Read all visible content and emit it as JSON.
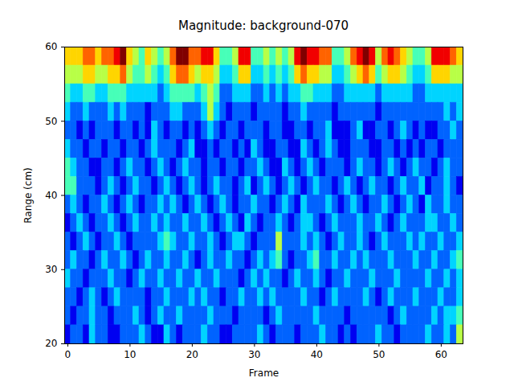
{
  "chart_data": {
    "type": "heatmap",
    "title": "Magnitude: background-070",
    "x_label": "Frame",
    "y_label": "Range (cm)",
    "xlim": [
      -0.5,
      63.5
    ],
    "ylim": [
      20,
      60
    ],
    "xticks": [
      0,
      10,
      20,
      30,
      40,
      50,
      60
    ],
    "yticks": [
      20,
      30,
      40,
      50,
      60
    ],
    "zlim": [
      0,
      9
    ],
    "x": [
      0,
      1,
      2,
      3,
      4,
      5,
      6,
      7,
      8,
      9,
      10,
      11,
      12,
      13,
      14,
      15,
      16,
      17,
      18,
      19,
      20,
      21,
      22,
      23,
      24,
      25,
      26,
      27,
      28,
      29,
      30,
      31,
      32,
      33,
      34,
      35,
      36,
      37,
      38,
      39,
      40,
      41,
      42,
      43,
      44,
      45,
      46,
      47,
      48,
      49,
      50,
      51,
      52,
      53,
      54,
      55,
      56,
      57,
      58,
      59,
      60,
      61,
      62,
      63
    ],
    "y": [
      58.75,
      56.25,
      53.75,
      51.25,
      48.75,
      46.25,
      43.75,
      41.25,
      38.75,
      36.25,
      33.75,
      31.25,
      28.75,
      26.25,
      23.75,
      21.25
    ],
    "z": [
      [
        6,
        6,
        6,
        7,
        7,
        6,
        7,
        7,
        8,
        9,
        6,
        5,
        4,
        6,
        5,
        4,
        5,
        7,
        9,
        9,
        7,
        7,
        8,
        8,
        6,
        4,
        4,
        5,
        8,
        8,
        4,
        4,
        5,
        4,
        5,
        4,
        5,
        8,
        9,
        8,
        8,
        7,
        7,
        4,
        4,
        5,
        7,
        8,
        9,
        8,
        5,
        7,
        8,
        7,
        6,
        5,
        4,
        4,
        5,
        8,
        8,
        8,
        7,
        6
      ],
      [
        5,
        5,
        5,
        6,
        6,
        5,
        5,
        6,
        6,
        7,
        5,
        4,
        4,
        5,
        4,
        3,
        4,
        6,
        7,
        7,
        6,
        5,
        6,
        6,
        5,
        3,
        3,
        4,
        6,
        6,
        3,
        3,
        4,
        3,
        4,
        3,
        4,
        6,
        7,
        6,
        6,
        5,
        5,
        3,
        3,
        4,
        5,
        6,
        7,
        6,
        4,
        5,
        6,
        6,
        5,
        4,
        3,
        3,
        4,
        6,
        6,
        6,
        5,
        5
      ],
      [
        4,
        3,
        3,
        4,
        4,
        3,
        3,
        4,
        4,
        4,
        3,
        3,
        3,
        3,
        3,
        2,
        3,
        4,
        4,
        4,
        4,
        3,
        4,
        5,
        4,
        2,
        2,
        3,
        3,
        3,
        2,
        2,
        3,
        2,
        3,
        2,
        3,
        3,
        4,
        4,
        3,
        3,
        3,
        2,
        2,
        3,
        3,
        3,
        3,
        3,
        2,
        3,
        3,
        3,
        3,
        3,
        2,
        2,
        3,
        3,
        3,
        3,
        3,
        3
      ],
      [
        3,
        2,
        2,
        3,
        2,
        2,
        2,
        3,
        2,
        3,
        2,
        2,
        2,
        1,
        2,
        2,
        2,
        3,
        3,
        2,
        2,
        2,
        3,
        5,
        3,
        2,
        1,
        2,
        2,
        2,
        1,
        2,
        2,
        2,
        2,
        1,
        2,
        2,
        3,
        2,
        2,
        2,
        2,
        1,
        2,
        2,
        2,
        2,
        2,
        2,
        1,
        2,
        2,
        2,
        2,
        2,
        2,
        2,
        2,
        2,
        2,
        3,
        2,
        3
      ],
      [
        2,
        2,
        1,
        2,
        1,
        2,
        2,
        2,
        1,
        2,
        2,
        1,
        2,
        1,
        3,
        2,
        1,
        2,
        2,
        1,
        2,
        1,
        2,
        3,
        2,
        1,
        2,
        2,
        1,
        2,
        2,
        2,
        1,
        2,
        2,
        1,
        1,
        2,
        2,
        1,
        2,
        2,
        3,
        1,
        1,
        1,
        2,
        3,
        1,
        1,
        2,
        2,
        1,
        2,
        3,
        2,
        1,
        2,
        1,
        1,
        2,
        2,
        3,
        2
      ],
      [
        3,
        2,
        2,
        1,
        2,
        2,
        1,
        2,
        2,
        1,
        2,
        2,
        1,
        2,
        3,
        2,
        2,
        2,
        1,
        2,
        3,
        1,
        1,
        2,
        1,
        2,
        2,
        1,
        2,
        1,
        3,
        2,
        1,
        1,
        2,
        2,
        1,
        1,
        3,
        2,
        1,
        2,
        3,
        2,
        1,
        1,
        2,
        2,
        2,
        1,
        1,
        2,
        2,
        1,
        2,
        1,
        2,
        1,
        2,
        2,
        1,
        2,
        2,
        2
      ],
      [
        4,
        3,
        2,
        2,
        1,
        1,
        2,
        2,
        1,
        2,
        3,
        2,
        2,
        1,
        2,
        3,
        2,
        1,
        2,
        3,
        2,
        2,
        1,
        2,
        2,
        1,
        2,
        2,
        1,
        2,
        2,
        3,
        2,
        1,
        1,
        3,
        2,
        1,
        2,
        3,
        2,
        1,
        2,
        2,
        2,
        1,
        2,
        3,
        2,
        2,
        1,
        2,
        3,
        2,
        1,
        2,
        3,
        2,
        2,
        1,
        2,
        3,
        2,
        2
      ],
      [
        4,
        4,
        2,
        2,
        2,
        1,
        2,
        3,
        2,
        1,
        2,
        3,
        2,
        2,
        1,
        2,
        3,
        2,
        1,
        2,
        3,
        2,
        1,
        2,
        3,
        2,
        2,
        1,
        2,
        3,
        1,
        2,
        3,
        2,
        1,
        2,
        3,
        2,
        1,
        2,
        3,
        2,
        2,
        1,
        2,
        3,
        2,
        1,
        2,
        3,
        2,
        2,
        1,
        2,
        3,
        2,
        2,
        3,
        1,
        2,
        2,
        3,
        2,
        1
      ],
      [
        2,
        3,
        2,
        1,
        2,
        2,
        3,
        2,
        1,
        2,
        3,
        2,
        1,
        2,
        2,
        3,
        2,
        3,
        2,
        1,
        2,
        3,
        2,
        1,
        2,
        3,
        2,
        1,
        2,
        2,
        3,
        2,
        2,
        1,
        2,
        3,
        2,
        1,
        3,
        2,
        2,
        2,
        3,
        2,
        1,
        2,
        3,
        2,
        1,
        2,
        2,
        3,
        2,
        1,
        2,
        3,
        2,
        1,
        3,
        2,
        2,
        3,
        2,
        2
      ],
      [
        1,
        2,
        3,
        2,
        1,
        2,
        2,
        3,
        2,
        1,
        2,
        3,
        2,
        2,
        3,
        2,
        3,
        2,
        2,
        3,
        2,
        2,
        3,
        2,
        1,
        2,
        3,
        2,
        1,
        3,
        2,
        1,
        2,
        2,
        3,
        2,
        1,
        2,
        3,
        3,
        2,
        1,
        2,
        3,
        2,
        2,
        2,
        3,
        2,
        2,
        3,
        2,
        1,
        2,
        3,
        2,
        2,
        2,
        3,
        3,
        2,
        2,
        3,
        2
      ],
      [
        2,
        1,
        2,
        3,
        2,
        1,
        2,
        2,
        3,
        2,
        1,
        2,
        2,
        2,
        2,
        3,
        4,
        3,
        2,
        2,
        3,
        2,
        2,
        3,
        2,
        1,
        2,
        3,
        3,
        2,
        1,
        2,
        2,
        2,
        5,
        2,
        2,
        2,
        3,
        2,
        3,
        2,
        1,
        2,
        3,
        2,
        2,
        3,
        2,
        1,
        2,
        3,
        2,
        2,
        2,
        3,
        2,
        3,
        2,
        2,
        3,
        2,
        2,
        3
      ],
      [
        2,
        3,
        2,
        2,
        1,
        2,
        3,
        2,
        2,
        3,
        2,
        1,
        2,
        3,
        2,
        2,
        3,
        2,
        2,
        3,
        2,
        1,
        2,
        3,
        2,
        2,
        3,
        2,
        2,
        1,
        2,
        3,
        2,
        3,
        4,
        2,
        1,
        2,
        2,
        3,
        4,
        2,
        2,
        3,
        2,
        2,
        3,
        2,
        3,
        2,
        2,
        2,
        3,
        2,
        2,
        2,
        3,
        2,
        2,
        3,
        2,
        2,
        3,
        4
      ],
      [
        3,
        2,
        2,
        1,
        2,
        2,
        2,
        3,
        2,
        2,
        1,
        2,
        3,
        2,
        2,
        3,
        2,
        2,
        3,
        2,
        2,
        3,
        2,
        2,
        3,
        2,
        2,
        2,
        1,
        2,
        3,
        2,
        3,
        2,
        2,
        1,
        2,
        3,
        2,
        2,
        3,
        2,
        1,
        2,
        2,
        3,
        2,
        2,
        2,
        3,
        2,
        2,
        2,
        3,
        2,
        2,
        2,
        2,
        3,
        2,
        2,
        3,
        2,
        3
      ],
      [
        2,
        2,
        1,
        2,
        3,
        2,
        1,
        2,
        3,
        2,
        2,
        2,
        2,
        1,
        2,
        2,
        3,
        2,
        2,
        2,
        3,
        2,
        3,
        2,
        2,
        1,
        2,
        2,
        3,
        2,
        2,
        3,
        2,
        3,
        2,
        2,
        2,
        2,
        3,
        2,
        2,
        1,
        2,
        3,
        2,
        2,
        2,
        2,
        3,
        2,
        1,
        2,
        3,
        2,
        2,
        2,
        3,
        2,
        2,
        2,
        3,
        2,
        2,
        3
      ],
      [
        2,
        1,
        2,
        2,
        3,
        2,
        2,
        1,
        2,
        2,
        2,
        3,
        2,
        1,
        2,
        3,
        2,
        2,
        3,
        2,
        2,
        2,
        2,
        3,
        2,
        2,
        2,
        1,
        2,
        2,
        2,
        2,
        1,
        2,
        3,
        2,
        2,
        2,
        2,
        2,
        3,
        2,
        2,
        2,
        2,
        1,
        2,
        2,
        2,
        2,
        2,
        2,
        1,
        2,
        3,
        2,
        2,
        2,
        2,
        3,
        2,
        3,
        3,
        4
      ],
      [
        1,
        2,
        2,
        1,
        3,
        2,
        2,
        1,
        1,
        2,
        2,
        2,
        3,
        2,
        1,
        1,
        3,
        2,
        1,
        2,
        2,
        2,
        3,
        2,
        2,
        1,
        1,
        2,
        2,
        2,
        2,
        3,
        2,
        1,
        2,
        2,
        2,
        1,
        2,
        2,
        2,
        3,
        2,
        2,
        1,
        2,
        1,
        2,
        2,
        2,
        3,
        2,
        2,
        1,
        2,
        2,
        2,
        2,
        3,
        2,
        2,
        3,
        2,
        5
      ]
    ]
  }
}
